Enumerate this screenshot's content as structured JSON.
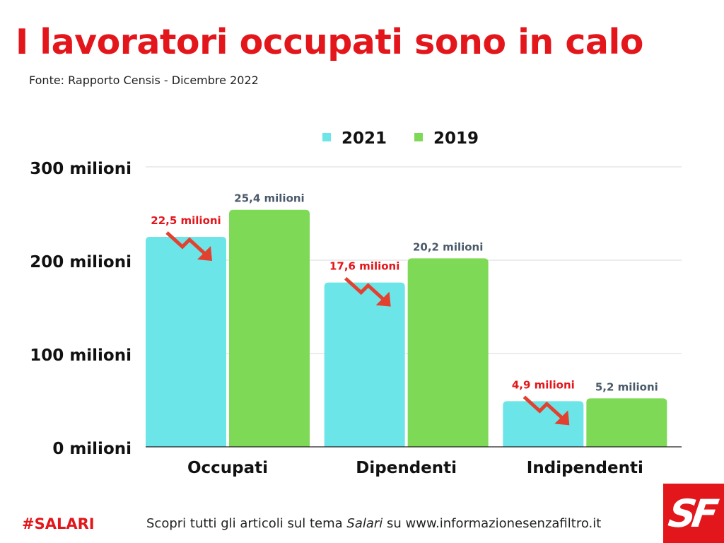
{
  "header": {
    "title": "I lavoratori occupati sono in calo",
    "source": "Fonte:  Rapporto Censis - Dicembre 2022"
  },
  "chart_data": {
    "type": "bar",
    "categories": [
      "Occupati",
      "Dipendenti",
      "Indipendenti"
    ],
    "series": [
      {
        "name": "2021",
        "color": "#6ce5e8",
        "label_color": "#e3161b",
        "values": [
          22.5,
          17.6,
          4.9
        ],
        "labels": [
          "22,5 milioni",
          "17,6 milioni",
          "4,9 milioni"
        ]
      },
      {
        "name": "2019",
        "color": "#7ed957",
        "label_color": "#4a5a6a",
        "values": [
          25.4,
          20.2,
          5.2
        ],
        "labels": [
          "25,4 milioni",
          "20,2 milioni",
          "5,2 milioni"
        ]
      }
    ],
    "y_ticks": [
      {
        "value": 0,
        "label": "0 milioni"
      },
      {
        "value": 100,
        "label": "100 milioni"
      },
      {
        "value": 200,
        "label": "200 milioni"
      },
      {
        "value": 300,
        "label": "300 milioni"
      }
    ],
    "ylim": [
      0,
      300
    ],
    "bar_scale": 10,
    "legend_position": "top",
    "grid": true,
    "decline_arrow_color": "#e3412f"
  },
  "footer": {
    "hashtag": "#SALARI",
    "text_before": "Scopri tutti gli articoli sul tema ",
    "text_em": "Salari",
    "text_after": " su www.informazionesenzafiltro.it"
  },
  "logo": {
    "text": "SF"
  }
}
